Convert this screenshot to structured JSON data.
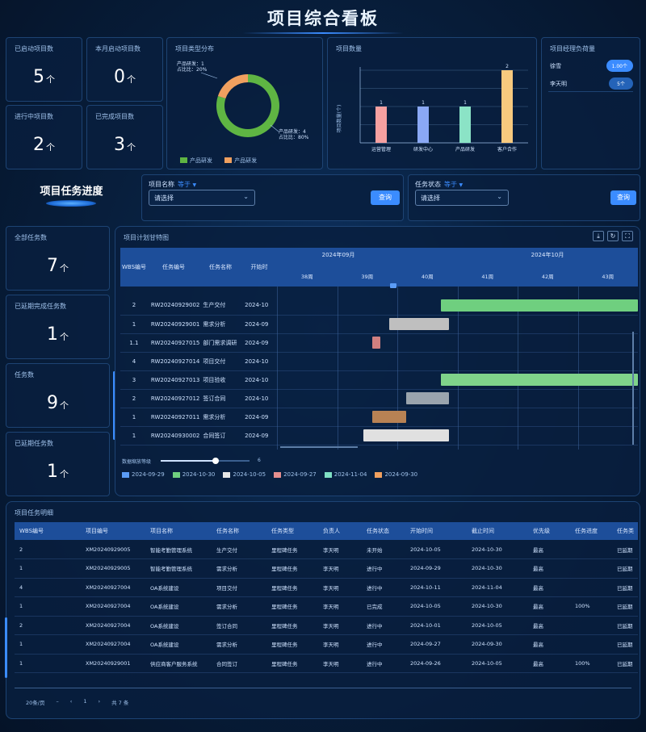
{
  "title": "项目综合看板",
  "stats_top": [
    {
      "label": "已启动项目数",
      "value": "5",
      "unit": "个"
    },
    {
      "label": "本月启动项目数",
      "value": "0",
      "unit": "个"
    },
    {
      "label": "进行中项目数",
      "value": "2",
      "unit": "个"
    },
    {
      "label": "已完成项目数",
      "value": "3",
      "unit": "个"
    }
  ],
  "donut": {
    "title": "项目类型分布",
    "label_a": "产品研发：1",
    "label_a2": "占比比：20%",
    "label_b": "产品研发：4",
    "label_b2": "占比比：80%",
    "legend": [
      {
        "name": "产品研发",
        "color": "#5fb543"
      },
      {
        "name": "产品研发",
        "color": "#f0a05f"
      }
    ],
    "values": [
      4,
      1
    ],
    "colors": [
      "#5fb543",
      "#f0a05f"
    ]
  },
  "bar_chart": {
    "title": "项目数量",
    "ylabel": "项目数量(个)",
    "chart_data": {
      "type": "bar",
      "categories": [
        "运营管理",
        "研发中心",
        "产品研发",
        "客户合作"
      ],
      "values": [
        1,
        1,
        1,
        2
      ],
      "colors": [
        "#f6a0a0",
        "#8aa8f5",
        "#8be3c6",
        "#f7c97e"
      ],
      "ylim": [
        0,
        2
      ]
    }
  },
  "workload": {
    "title": "项目经理负荷量",
    "rows": [
      {
        "name": "徐雪",
        "badge": "1.00个"
      },
      {
        "name": "李天明",
        "badge": "5个"
      }
    ]
  },
  "progress_title": "项目任务进度",
  "filter1": {
    "label": "项目名称",
    "mode": "等于",
    "placeholder": "请选择",
    "button": "查询"
  },
  "filter2": {
    "label": "任务状态",
    "mode": "等于",
    "placeholder": "请选择",
    "button": "查询"
  },
  "stats_left": [
    {
      "label": "全部任务数",
      "value": "7",
      "unit": "个"
    },
    {
      "label": "已延期完成任务数",
      "value": "1",
      "unit": "个"
    },
    {
      "label": "任务数",
      "value": "9",
      "unit": "个"
    },
    {
      "label": "已延期任务数",
      "value": "1",
      "unit": "个"
    }
  ],
  "gantt": {
    "title": "项目计划甘特图",
    "columns": [
      "WBS编号",
      "任务编号",
      "任务名称",
      "开始时"
    ],
    "months": [
      "2024年09月",
      "2024年10月"
    ],
    "weeks": [
      "38周",
      "39周",
      "40周",
      "41周",
      "42周",
      "43周"
    ],
    "rows": [
      {
        "wbs": "2",
        "code": "RW20240929002",
        "name": "生产交付",
        "start": "2024-10"
      },
      {
        "wbs": "1",
        "code": "RW20240929001",
        "name": "需求分析",
        "start": "2024-09"
      },
      {
        "wbs": "1.1",
        "code": "RW20240927015",
        "name": "部门需求调研",
        "start": "2024-09"
      },
      {
        "wbs": "4",
        "code": "RW20240927014",
        "name": "项目交付",
        "start": "2024-10"
      },
      {
        "wbs": "3",
        "code": "RW20240927013",
        "name": "项目验收",
        "start": "2024-10"
      },
      {
        "wbs": "2",
        "code": "RW20240927012",
        "name": "签订合同",
        "start": "2024-10"
      },
      {
        "wbs": "1",
        "code": "RW20240927011",
        "name": "需求分析",
        "start": "2024-09"
      },
      {
        "wbs": "1",
        "code": "RW20240930002",
        "name": "合同签订",
        "start": "2024-09"
      }
    ],
    "zoom_label": "数据缩放等级",
    "zoom_value": "6",
    "legend": [
      {
        "name": "2024-09-29",
        "color": "#5b9cf6"
      },
      {
        "name": "2024-10-30",
        "color": "#6fcf7f"
      },
      {
        "name": "2024-10-05",
        "color": "#e6e6e6"
      },
      {
        "name": "2024-09-27",
        "color": "#e58f8f"
      },
      {
        "name": "2024-11-04",
        "color": "#7fe0c4"
      },
      {
        "name": "2024-09-30",
        "color": "#f0a05f"
      }
    ]
  },
  "detail_table": {
    "title": "项目任务明细",
    "headers": [
      "WBS编号",
      "项目编号",
      "项目名称",
      "任务名称",
      "任务类型",
      "负责人",
      "任务状态",
      "开始时间",
      "截止时间",
      "优先级",
      "任务进度",
      "任务类"
    ],
    "rows": [
      [
        "2",
        "XM20240929005",
        "智能考勤管理系统",
        "生产交付",
        "里程碑任务",
        "李天明",
        "未开始",
        "2024-10-05",
        "2024-10-30",
        "最高",
        "",
        "已延期"
      ],
      [
        "1",
        "XM20240929005",
        "智能考勤管理系统",
        "需求分析",
        "里程碑任务",
        "李天明",
        "进行中",
        "2024-09-29",
        "2024-10-30",
        "最高",
        "",
        "已延期"
      ],
      [
        "4",
        "XM20240927004",
        "OA系统建设",
        "项目交付",
        "里程碑任务",
        "李天明",
        "进行中",
        "2024-10-11",
        "2024-11-04",
        "最高",
        "",
        "已延期"
      ],
      [
        "1",
        "XM20240927004",
        "OA系统建设",
        "需求分析",
        "里程碑任务",
        "李天明",
        "已完成",
        "2024-10-05",
        "2024-10-30",
        "最高",
        "100%",
        "已延期"
      ],
      [
        "2",
        "XM20240927004",
        "OA系统建设",
        "签订合同",
        "里程碑任务",
        "李天明",
        "进行中",
        "2024-10-01",
        "2024-10-05",
        "最高",
        "",
        "已延期"
      ],
      [
        "1",
        "XM20240927004",
        "OA系统建设",
        "需求分析",
        "里程碑任务",
        "李天明",
        "进行中",
        "2024-09-27",
        "2024-09-30",
        "最高",
        "",
        "已延期"
      ],
      [
        "1",
        "XM20240929001",
        "供应商客户服务系统",
        "合同签订",
        "里程碑任务",
        "李天明",
        "进行中",
        "2024-09-26",
        "2024-10-05",
        "最高",
        "100%",
        "已延期"
      ]
    ]
  },
  "pagination": {
    "page_size": "20条/页",
    "prev": "‹",
    "current": "1",
    "next": "›",
    "total": "共 7 条"
  },
  "toolbar_icons": [
    "download-icon",
    "refresh-icon",
    "fullscreen-icon"
  ]
}
